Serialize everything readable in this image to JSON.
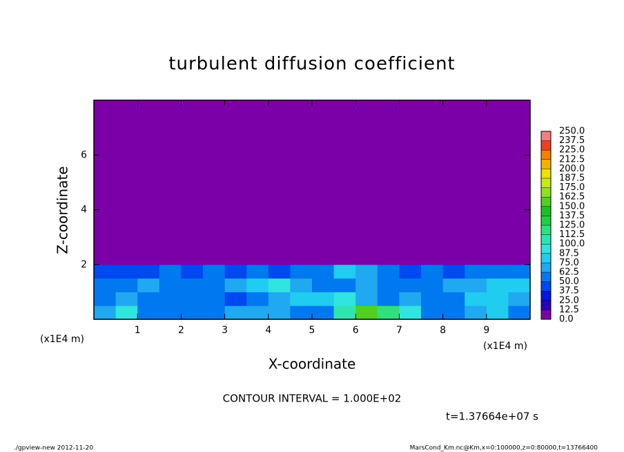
{
  "chart_data": {
    "type": "heatmap",
    "title": "turbulent diffusion coefficient",
    "x_label": "X-coordinate",
    "y_label": "Z-coordinate",
    "x_unit": "(x1E4 m)",
    "y_unit": "(x1E4 m)",
    "contour_note": "CONTOUR INTERVAL = 1.000E+02",
    "time_note": "t=1.37664e+07 s",
    "footer_left": "./gpview-new  2012-11-20",
    "footer_right": "MarsCond_Km.nc@Km,x=0:100000,z=0:80000,t=13766400",
    "xlim": [
      0,
      10
    ],
    "ylim": [
      0,
      8
    ],
    "xticks": [
      1,
      2,
      3,
      4,
      5,
      6,
      7,
      8,
      9
    ],
    "yticks": [
      2,
      4,
      6
    ],
    "xbins": [
      0,
      0.5,
      1,
      1.5,
      2,
      2.5,
      3,
      3.5,
      4,
      4.5,
      5,
      5.5,
      6,
      6.5,
      7,
      7.5,
      8,
      8.5,
      9,
      9.5,
      10
    ],
    "ybins": [
      0,
      0.5,
      1,
      1.5,
      2,
      8
    ],
    "z": [
      [
        70,
        95,
        60,
        55,
        60,
        55,
        65,
        70,
        70,
        60,
        55,
        110,
        160,
        120,
        90,
        60,
        55,
        70,
        80,
        60
      ],
      [
        60,
        65,
        50,
        55,
        60,
        50,
        45,
        60,
        70,
        80,
        75,
        90,
        70,
        60,
        65,
        55,
        60,
        75,
        85,
        70
      ],
      [
        55,
        60,
        65,
        55,
        50,
        60,
        70,
        85,
        95,
        70,
        55,
        60,
        65,
        55,
        55,
        60,
        70,
        65,
        75,
        80
      ],
      [
        45,
        40,
        40,
        50,
        45,
        50,
        45,
        50,
        45,
        55,
        60,
        80,
        70,
        55,
        45,
        50,
        45,
        55,
        60,
        50
      ],
      [
        0,
        0,
        0,
        0,
        0,
        0,
        0,
        0,
        0,
        0,
        0,
        0,
        0,
        0,
        0,
        0,
        0,
        0,
        0,
        0
      ]
    ],
    "levels": [
      {
        "value": 0,
        "label": "0.0"
      },
      {
        "value": 12.5,
        "label": "12.5"
      },
      {
        "value": 25,
        "label": "25.0"
      },
      {
        "value": 37.5,
        "label": "37.5"
      },
      {
        "value": 50,
        "label": "50.0"
      },
      {
        "value": 62.5,
        "label": "62.5"
      },
      {
        "value": 75,
        "label": "75.0"
      },
      {
        "value": 87.5,
        "label": "87.5"
      },
      {
        "value": 100,
        "label": "100.0"
      },
      {
        "value": 112.5,
        "label": "112.5"
      },
      {
        "value": 125,
        "label": "125.0"
      },
      {
        "value": 137.5,
        "label": "137.5"
      },
      {
        "value": 150,
        "label": "150.0"
      },
      {
        "value": 162.5,
        "label": "162.5"
      },
      {
        "value": 175,
        "label": "175.0"
      },
      {
        "value": 187.5,
        "label": "187.5"
      },
      {
        "value": 200,
        "label": "200.0"
      },
      {
        "value": 212.5,
        "label": "212.5"
      },
      {
        "value": 225,
        "label": "225.0"
      },
      {
        "value": 237.5,
        "label": "237.5"
      },
      {
        "value": 250,
        "label": "250.0"
      }
    ],
    "colors": [
      "#7c00a8",
      "#2800c0",
      "#0018e0",
      "#0048f0",
      "#0078f0",
      "#20a8f0",
      "#20ccf0",
      "#30e4e0",
      "#30e4b0",
      "#30e080",
      "#20d040",
      "#20c020",
      "#50d020",
      "#90e020",
      "#c8e820",
      "#f0e000",
      "#f8b000",
      "#f88000",
      "#f04020",
      "#f08080"
    ]
  }
}
